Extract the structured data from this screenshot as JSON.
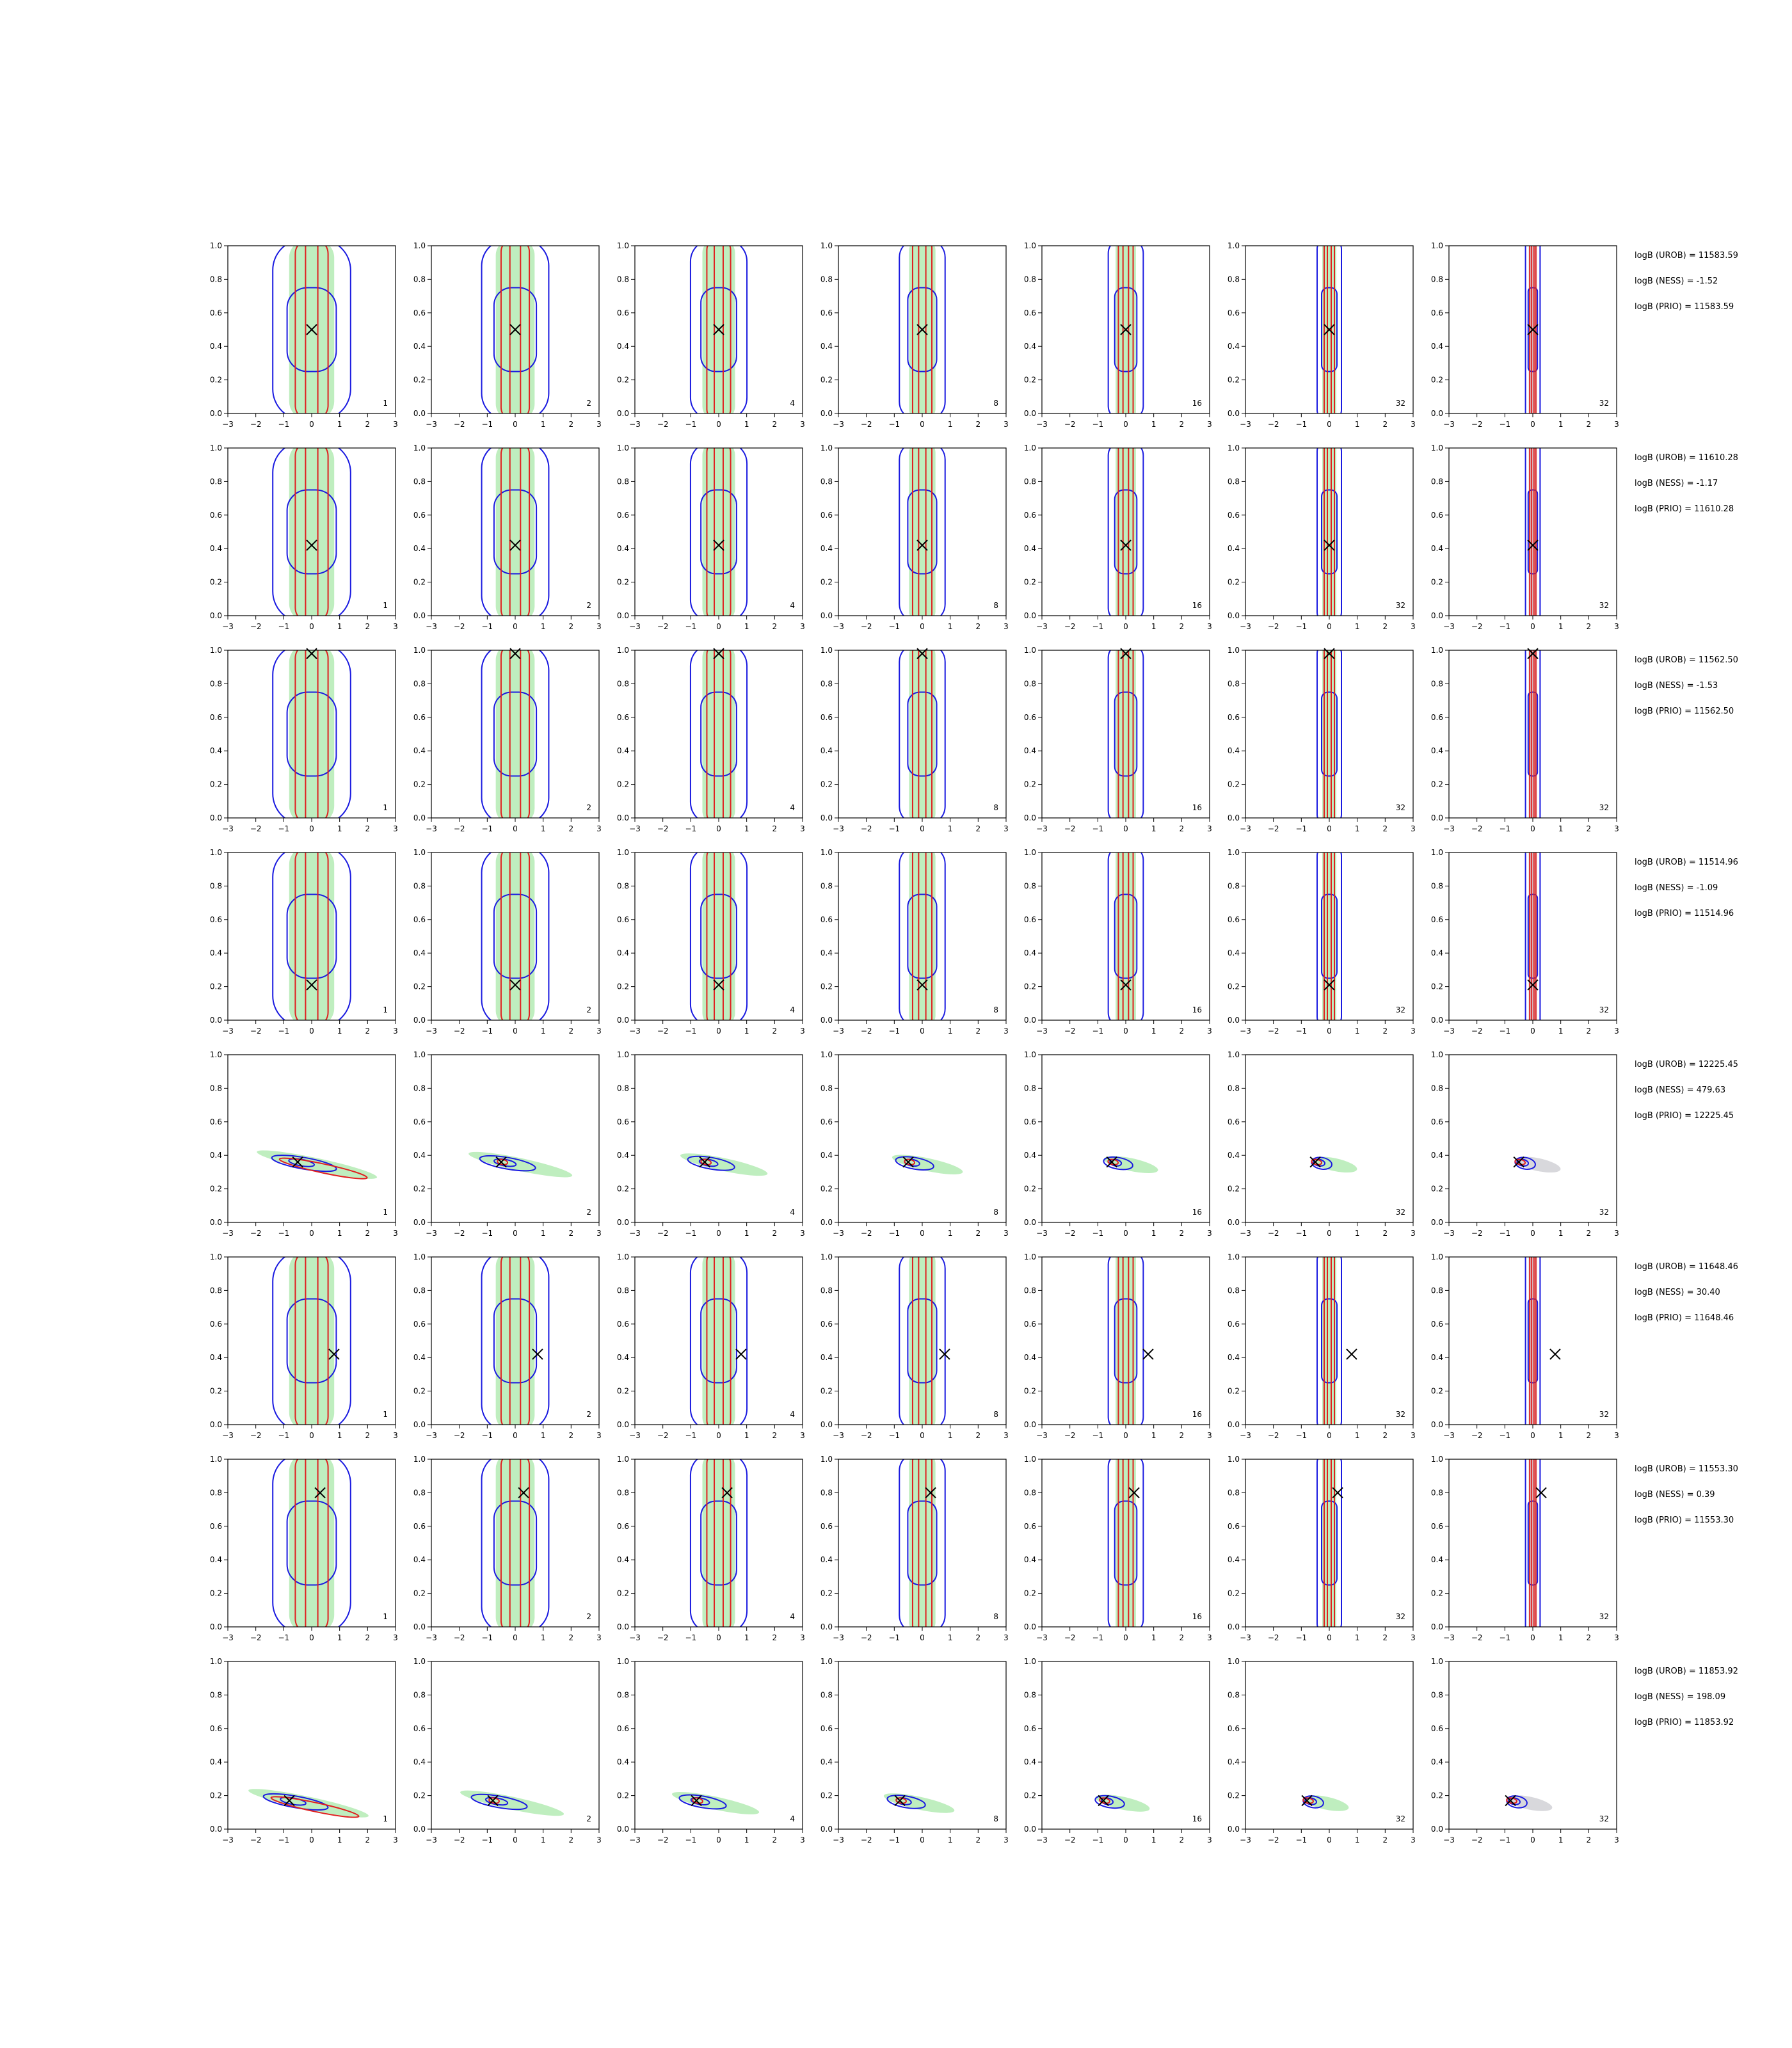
{
  "chart_data": {
    "type": "contour",
    "grid": {
      "rows": 8,
      "cols": 7
    },
    "xlim": [
      -3,
      3
    ],
    "ylim": [
      0,
      1
    ],
    "x_ticks": [
      "−3",
      "−2",
      "−1",
      "0",
      "1",
      "2",
      "3"
    ],
    "y_ticks": [
      "0.0",
      "0.2",
      "0.4",
      "0.6",
      "0.8",
      "1.0"
    ],
    "column_labels": [
      "1",
      "2",
      "4",
      "8",
      "16",
      "32",
      "32"
    ],
    "colors": {
      "fill": "#bfeebf",
      "fill_last": "#d8d8dc",
      "red": "#e02020",
      "blue": "#1a1ae0",
      "marker": "#000000"
    },
    "rows": [
      {
        "truth": [
          0,
          0.5
        ],
        "shape": "vertical",
        "lines": [
          "logB (UROB) = 11583.59",
          "logB (NESS) = -1.52",
          "logB (PRIO) = 11583.59"
        ]
      },
      {
        "truth": [
          0,
          0.42
        ],
        "shape": "vertical",
        "lines": [
          "logB (UROB) = 11610.28",
          "logB (NESS) = -1.17",
          "logB (PRIO) = 11610.28"
        ]
      },
      {
        "truth": [
          0,
          0.98
        ],
        "shape": "vertical",
        "lines": [
          "logB (UROB) = 11562.50",
          "logB (NESS) = -1.53",
          "logB (PRIO) = 11562.50"
        ]
      },
      {
        "truth": [
          0,
          0.21
        ],
        "shape": "vertical",
        "lines": [
          "logB (UROB) = 11514.96",
          "logB (NESS) = -1.09",
          "logB (PRIO) = 11514.96"
        ]
      },
      {
        "truth": [
          -0.5,
          0.36
        ],
        "shape": "tilted",
        "lines": [
          "logB (UROB) = 12225.45",
          "logB (NESS) = 479.63",
          "logB (PRIO) = 12225.45"
        ]
      },
      {
        "truth": [
          0.8,
          0.42
        ],
        "shape": "vertical",
        "lines": [
          "logB (UROB) = 11648.46",
          "logB (NESS) = 30.40",
          "logB (PRIO) = 11648.46"
        ]
      },
      {
        "truth": [
          0.3,
          0.8
        ],
        "shape": "vertical",
        "lines": [
          "logB (UROB) = 11553.30",
          "logB (NESS) = 0.39",
          "logB (PRIO) = 11553.30"
        ]
      },
      {
        "truth": [
          -0.8,
          0.17
        ],
        "shape": "tilted",
        "lines": [
          "logB (UROB) = 11853.92",
          "logB (NESS) = 198.09",
          "logB (PRIO) = 11853.92"
        ]
      }
    ]
  }
}
